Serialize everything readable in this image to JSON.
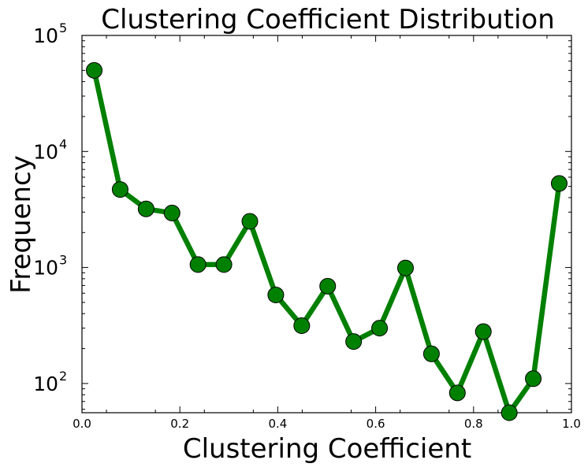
{
  "chart_data": {
    "type": "line",
    "title": "Clustering Coefficient Distribution",
    "xlabel": "Clustering Coefficient",
    "ylabel": "Frequency",
    "xlim": [
      0.0,
      1.0
    ],
    "ylim": [
      56,
      100000
    ],
    "yscale": "log",
    "grid": false,
    "legend": "none",
    "xticks": [
      "0.0",
      "0.2",
      "0.4",
      "0.6",
      "0.8",
      "1.0"
    ],
    "yticks": [
      {
        "base": "10",
        "exp": "2",
        "value": 100
      },
      {
        "base": "10",
        "exp": "3",
        "value": 1000
      },
      {
        "base": "10",
        "exp": "4",
        "value": 10000
      },
      {
        "base": "10",
        "exp": "5",
        "value": 100000
      }
    ],
    "series": [
      {
        "color": "#008000",
        "marker": "circle",
        "points": [
          {
            "x": 0.025,
            "y": 50000
          },
          {
            "x": 0.078,
            "y": 4700
          },
          {
            "x": 0.131,
            "y": 3200
          },
          {
            "x": 0.184,
            "y": 2950
          },
          {
            "x": 0.237,
            "y": 1060
          },
          {
            "x": 0.29,
            "y": 1060
          },
          {
            "x": 0.343,
            "y": 2500
          },
          {
            "x": 0.396,
            "y": 580
          },
          {
            "x": 0.449,
            "y": 315
          },
          {
            "x": 0.502,
            "y": 690
          },
          {
            "x": 0.555,
            "y": 230
          },
          {
            "x": 0.608,
            "y": 300
          },
          {
            "x": 0.661,
            "y": 990
          },
          {
            "x": 0.714,
            "y": 180
          },
          {
            "x": 0.767,
            "y": 83
          },
          {
            "x": 0.82,
            "y": 280
          },
          {
            "x": 0.873,
            "y": 56
          },
          {
            "x": 0.922,
            "y": 110
          },
          {
            "x": 0.975,
            "y": 5300
          }
        ]
      }
    ]
  }
}
